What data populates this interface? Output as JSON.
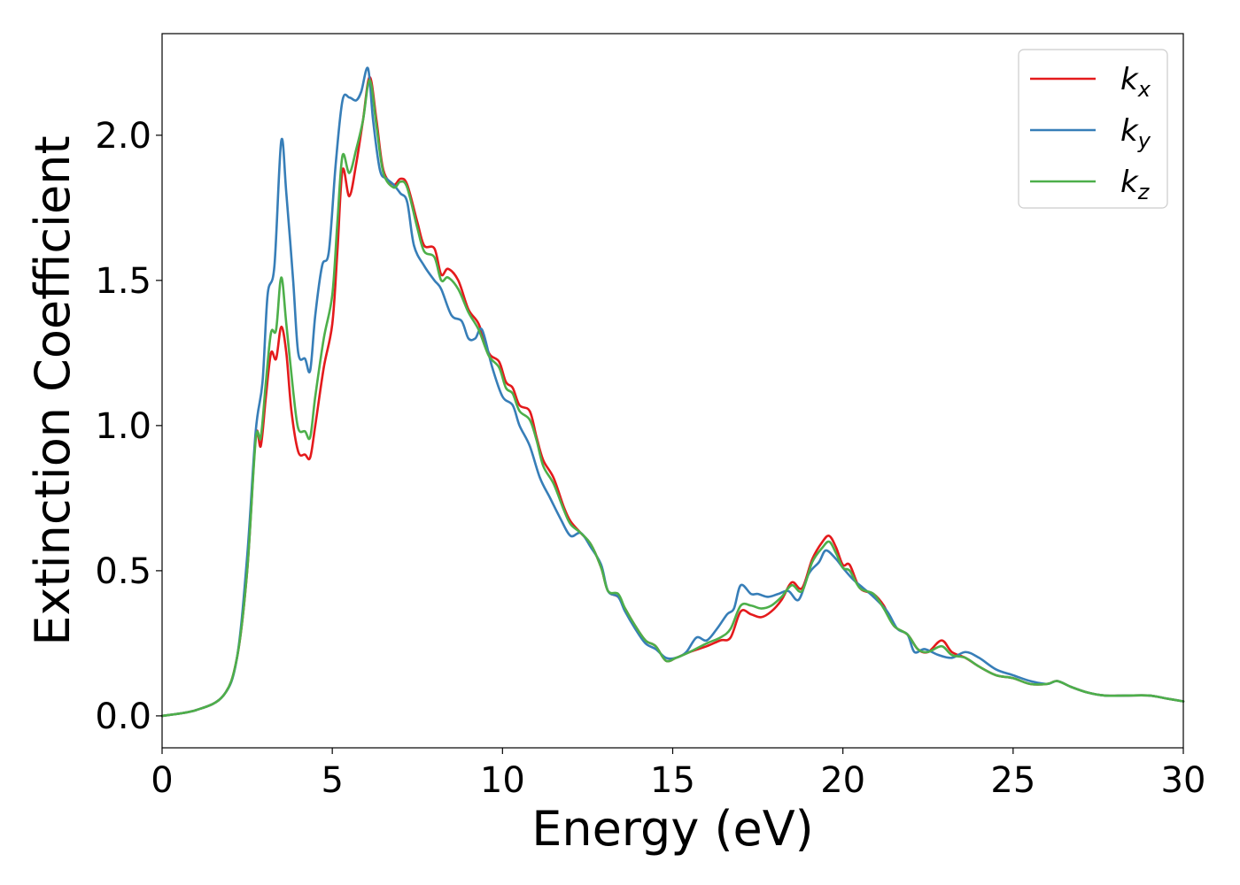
{
  "chart_data": {
    "type": "line",
    "title": "",
    "xlabel": "Energy (eV)",
    "ylabel": "Extinction Coefficient",
    "xlim": [
      0,
      30
    ],
    "ylim": [
      -0.11,
      2.35
    ],
    "xticks": [
      0,
      5,
      10,
      15,
      20,
      25,
      30
    ],
    "xtick_labels": [
      "0",
      "5",
      "10",
      "15",
      "20",
      "25",
      "30"
    ],
    "yticks": [
      0.0,
      0.5,
      1.0,
      1.5,
      2.0
    ],
    "ytick_labels": [
      "0.0",
      "0.5",
      "1.0",
      "1.5",
      "2.0"
    ],
    "grid": false,
    "legend_position": "top-right",
    "series": [
      {
        "name": "k_x",
        "label_main": "k",
        "label_sub": "x",
        "color": "#e41a1c",
        "points": [
          [
            0,
            0.0
          ],
          [
            1.0,
            0.02
          ],
          [
            1.8,
            0.07
          ],
          [
            2.2,
            0.2
          ],
          [
            2.5,
            0.5
          ],
          [
            2.75,
            0.96
          ],
          [
            2.9,
            0.93
          ],
          [
            3.05,
            1.1
          ],
          [
            3.2,
            1.25
          ],
          [
            3.35,
            1.23
          ],
          [
            3.5,
            1.34
          ],
          [
            3.65,
            1.25
          ],
          [
            3.8,
            1.05
          ],
          [
            4.0,
            0.91
          ],
          [
            4.2,
            0.9
          ],
          [
            4.35,
            0.89
          ],
          [
            4.5,
            1.0
          ],
          [
            4.75,
            1.2
          ],
          [
            5.0,
            1.35
          ],
          [
            5.15,
            1.6
          ],
          [
            5.3,
            1.88
          ],
          [
            5.5,
            1.79
          ],
          [
            5.7,
            1.9
          ],
          [
            5.9,
            2.05
          ],
          [
            6.1,
            2.2
          ],
          [
            6.3,
            2.05
          ],
          [
            6.5,
            1.88
          ],
          [
            6.8,
            1.83
          ],
          [
            7.0,
            1.85
          ],
          [
            7.2,
            1.83
          ],
          [
            7.5,
            1.7
          ],
          [
            7.7,
            1.62
          ],
          [
            8.0,
            1.61
          ],
          [
            8.2,
            1.52
          ],
          [
            8.4,
            1.54
          ],
          [
            8.7,
            1.5
          ],
          [
            9.0,
            1.4
          ],
          [
            9.3,
            1.35
          ],
          [
            9.6,
            1.25
          ],
          [
            9.9,
            1.22
          ],
          [
            10.1,
            1.15
          ],
          [
            10.3,
            1.13
          ],
          [
            10.5,
            1.07
          ],
          [
            10.8,
            1.05
          ],
          [
            11.0,
            0.96
          ],
          [
            11.2,
            0.88
          ],
          [
            11.5,
            0.82
          ],
          [
            11.8,
            0.72
          ],
          [
            12.0,
            0.67
          ],
          [
            12.3,
            0.63
          ],
          [
            12.6,
            0.59
          ],
          [
            12.9,
            0.51
          ],
          [
            13.1,
            0.43
          ],
          [
            13.4,
            0.41
          ],
          [
            13.6,
            0.37
          ],
          [
            13.9,
            0.31
          ],
          [
            14.2,
            0.26
          ],
          [
            14.5,
            0.24
          ],
          [
            14.8,
            0.19
          ],
          [
            15.1,
            0.2
          ],
          [
            15.5,
            0.22
          ],
          [
            16.0,
            0.24
          ],
          [
            16.4,
            0.26
          ],
          [
            16.7,
            0.27
          ],
          [
            17.0,
            0.36
          ],
          [
            17.3,
            0.35
          ],
          [
            17.6,
            0.34
          ],
          [
            17.9,
            0.36
          ],
          [
            18.2,
            0.4
          ],
          [
            18.5,
            0.46
          ],
          [
            18.8,
            0.44
          ],
          [
            19.1,
            0.54
          ],
          [
            19.4,
            0.6
          ],
          [
            19.6,
            0.62
          ],
          [
            19.8,
            0.58
          ],
          [
            20.0,
            0.52
          ],
          [
            20.2,
            0.52
          ],
          [
            20.5,
            0.44
          ],
          [
            20.9,
            0.42
          ],
          [
            21.2,
            0.38
          ],
          [
            21.5,
            0.31
          ],
          [
            21.9,
            0.28
          ],
          [
            22.2,
            0.23
          ],
          [
            22.5,
            0.22
          ],
          [
            22.9,
            0.26
          ],
          [
            23.2,
            0.22
          ],
          [
            23.6,
            0.2
          ],
          [
            24.0,
            0.17
          ],
          [
            24.5,
            0.14
          ],
          [
            25.0,
            0.13
          ],
          [
            25.5,
            0.11
          ],
          [
            26.0,
            0.11
          ],
          [
            26.3,
            0.12
          ],
          [
            26.7,
            0.1
          ],
          [
            27.2,
            0.08
          ],
          [
            27.7,
            0.07
          ],
          [
            28.3,
            0.07
          ],
          [
            29.0,
            0.07
          ],
          [
            29.5,
            0.06
          ],
          [
            30.0,
            0.05
          ]
        ]
      },
      {
        "name": "k_y",
        "label_main": "k",
        "label_sub": "y",
        "color": "#377eb8",
        "points": [
          [
            0,
            0.0
          ],
          [
            1.0,
            0.02
          ],
          [
            1.8,
            0.07
          ],
          [
            2.2,
            0.2
          ],
          [
            2.5,
            0.55
          ],
          [
            2.75,
            0.98
          ],
          [
            2.95,
            1.15
          ],
          [
            3.1,
            1.45
          ],
          [
            3.3,
            1.55
          ],
          [
            3.5,
            1.98
          ],
          [
            3.65,
            1.8
          ],
          [
            3.85,
            1.5
          ],
          [
            4.0,
            1.25
          ],
          [
            4.2,
            1.23
          ],
          [
            4.35,
            1.19
          ],
          [
            4.5,
            1.38
          ],
          [
            4.7,
            1.55
          ],
          [
            4.9,
            1.6
          ],
          [
            5.1,
            1.9
          ],
          [
            5.3,
            2.12
          ],
          [
            5.5,
            2.13
          ],
          [
            5.7,
            2.12
          ],
          [
            5.85,
            2.15
          ],
          [
            6.05,
            2.23
          ],
          [
            6.2,
            2.05
          ],
          [
            6.4,
            1.88
          ],
          [
            6.6,
            1.85
          ],
          [
            6.8,
            1.83
          ],
          [
            7.0,
            1.8
          ],
          [
            7.2,
            1.77
          ],
          [
            7.4,
            1.62
          ],
          [
            7.7,
            1.55
          ],
          [
            8.0,
            1.5
          ],
          [
            8.2,
            1.47
          ],
          [
            8.5,
            1.38
          ],
          [
            8.8,
            1.36
          ],
          [
            9.0,
            1.3
          ],
          [
            9.2,
            1.3
          ],
          [
            9.4,
            1.33
          ],
          [
            9.7,
            1.2
          ],
          [
            10.0,
            1.1
          ],
          [
            10.3,
            1.07
          ],
          [
            10.5,
            1.0
          ],
          [
            10.8,
            0.93
          ],
          [
            11.1,
            0.82
          ],
          [
            11.4,
            0.75
          ],
          [
            11.7,
            0.68
          ],
          [
            12.0,
            0.62
          ],
          [
            12.3,
            0.63
          ],
          [
            12.6,
            0.58
          ],
          [
            12.9,
            0.52
          ],
          [
            13.1,
            0.43
          ],
          [
            13.4,
            0.41
          ],
          [
            13.6,
            0.36
          ],
          [
            13.9,
            0.3
          ],
          [
            14.2,
            0.25
          ],
          [
            14.5,
            0.23
          ],
          [
            14.8,
            0.2
          ],
          [
            15.1,
            0.2
          ],
          [
            15.4,
            0.22
          ],
          [
            15.7,
            0.27
          ],
          [
            16.0,
            0.26
          ],
          [
            16.3,
            0.3
          ],
          [
            16.6,
            0.35
          ],
          [
            16.8,
            0.37
          ],
          [
            17.0,
            0.45
          ],
          [
            17.3,
            0.42
          ],
          [
            17.5,
            0.42
          ],
          [
            17.8,
            0.41
          ],
          [
            18.1,
            0.42
          ],
          [
            18.4,
            0.43
          ],
          [
            18.7,
            0.4
          ],
          [
            19.0,
            0.49
          ],
          [
            19.3,
            0.53
          ],
          [
            19.5,
            0.57
          ],
          [
            19.8,
            0.54
          ],
          [
            20.0,
            0.51
          ],
          [
            20.3,
            0.47
          ],
          [
            20.6,
            0.44
          ],
          [
            20.9,
            0.41
          ],
          [
            21.3,
            0.36
          ],
          [
            21.6,
            0.3
          ],
          [
            21.9,
            0.28
          ],
          [
            22.1,
            0.22
          ],
          [
            22.4,
            0.23
          ],
          [
            22.8,
            0.21
          ],
          [
            23.2,
            0.2
          ],
          [
            23.6,
            0.22
          ],
          [
            24.0,
            0.2
          ],
          [
            24.5,
            0.16
          ],
          [
            25.0,
            0.14
          ],
          [
            25.5,
            0.12
          ],
          [
            26.0,
            0.11
          ],
          [
            26.3,
            0.12
          ],
          [
            26.7,
            0.1
          ],
          [
            27.2,
            0.08
          ],
          [
            27.7,
            0.07
          ],
          [
            28.3,
            0.07
          ],
          [
            29.0,
            0.07
          ],
          [
            29.5,
            0.06
          ],
          [
            30.0,
            0.05
          ]
        ]
      },
      {
        "name": "k_z",
        "label_main": "k",
        "label_sub": "z",
        "color": "#4daf4a",
        "points": [
          [
            0,
            0.0
          ],
          [
            1.0,
            0.02
          ],
          [
            1.8,
            0.07
          ],
          [
            2.2,
            0.2
          ],
          [
            2.5,
            0.5
          ],
          [
            2.75,
            0.95
          ],
          [
            2.9,
            0.96
          ],
          [
            3.05,
            1.15
          ],
          [
            3.2,
            1.32
          ],
          [
            3.35,
            1.33
          ],
          [
            3.5,
            1.51
          ],
          [
            3.65,
            1.35
          ],
          [
            3.85,
            1.12
          ],
          [
            4.0,
            0.99
          ],
          [
            4.2,
            0.98
          ],
          [
            4.35,
            0.96
          ],
          [
            4.5,
            1.1
          ],
          [
            4.75,
            1.3
          ],
          [
            5.0,
            1.45
          ],
          [
            5.15,
            1.7
          ],
          [
            5.3,
            1.93
          ],
          [
            5.5,
            1.87
          ],
          [
            5.7,
            1.95
          ],
          [
            5.9,
            2.05
          ],
          [
            6.1,
            2.19
          ],
          [
            6.3,
            2.03
          ],
          [
            6.5,
            1.87
          ],
          [
            6.8,
            1.82
          ],
          [
            7.0,
            1.84
          ],
          [
            7.2,
            1.82
          ],
          [
            7.5,
            1.68
          ],
          [
            7.7,
            1.6
          ],
          [
            8.0,
            1.58
          ],
          [
            8.2,
            1.5
          ],
          [
            8.4,
            1.51
          ],
          [
            8.7,
            1.47
          ],
          [
            9.0,
            1.39
          ],
          [
            9.3,
            1.33
          ],
          [
            9.6,
            1.24
          ],
          [
            9.9,
            1.2
          ],
          [
            10.1,
            1.13
          ],
          [
            10.3,
            1.11
          ],
          [
            10.5,
            1.05
          ],
          [
            10.8,
            1.02
          ],
          [
            11.0,
            0.95
          ],
          [
            11.2,
            0.86
          ],
          [
            11.5,
            0.8
          ],
          [
            11.8,
            0.71
          ],
          [
            12.0,
            0.66
          ],
          [
            12.3,
            0.63
          ],
          [
            12.6,
            0.59
          ],
          [
            12.9,
            0.51
          ],
          [
            13.1,
            0.43
          ],
          [
            13.4,
            0.42
          ],
          [
            13.6,
            0.37
          ],
          [
            13.9,
            0.31
          ],
          [
            14.2,
            0.26
          ],
          [
            14.5,
            0.24
          ],
          [
            14.8,
            0.19
          ],
          [
            15.1,
            0.2
          ],
          [
            15.5,
            0.22
          ],
          [
            16.0,
            0.25
          ],
          [
            16.4,
            0.27
          ],
          [
            16.7,
            0.3
          ],
          [
            17.0,
            0.38
          ],
          [
            17.3,
            0.38
          ],
          [
            17.6,
            0.37
          ],
          [
            17.9,
            0.38
          ],
          [
            18.2,
            0.41
          ],
          [
            18.5,
            0.45
          ],
          [
            18.8,
            0.43
          ],
          [
            19.1,
            0.53
          ],
          [
            19.4,
            0.58
          ],
          [
            19.6,
            0.6
          ],
          [
            19.8,
            0.56
          ],
          [
            20.0,
            0.51
          ],
          [
            20.2,
            0.5
          ],
          [
            20.5,
            0.44
          ],
          [
            20.9,
            0.42
          ],
          [
            21.2,
            0.37
          ],
          [
            21.5,
            0.31
          ],
          [
            21.9,
            0.28
          ],
          [
            22.2,
            0.23
          ],
          [
            22.5,
            0.22
          ],
          [
            22.9,
            0.24
          ],
          [
            23.2,
            0.21
          ],
          [
            23.6,
            0.2
          ],
          [
            24.0,
            0.17
          ],
          [
            24.5,
            0.14
          ],
          [
            25.0,
            0.13
          ],
          [
            25.5,
            0.11
          ],
          [
            26.0,
            0.11
          ],
          [
            26.3,
            0.12
          ],
          [
            26.7,
            0.1
          ],
          [
            27.2,
            0.08
          ],
          [
            27.7,
            0.07
          ],
          [
            28.3,
            0.07
          ],
          [
            29.0,
            0.07
          ],
          [
            29.5,
            0.06
          ],
          [
            30.0,
            0.05
          ]
        ]
      }
    ]
  }
}
